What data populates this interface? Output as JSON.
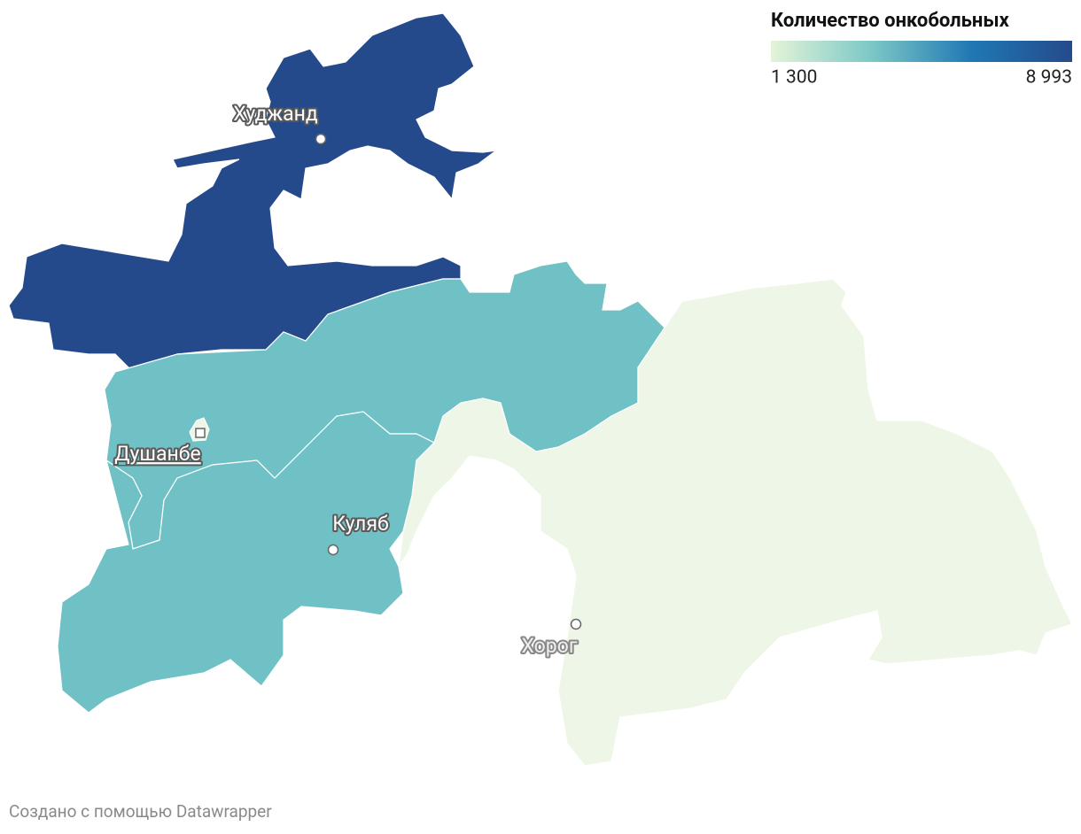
{
  "legend": {
    "title": "Количество онкобольных",
    "ticks": [
      {
        "value": 1300,
        "label": "1 300"
      },
      {
        "value": 8993,
        "label": "8 993"
      }
    ],
    "colors": [
      "#e4f4d8",
      "#7cc8c6",
      "#1f78b4",
      "#254a8b"
    ]
  },
  "cities": [
    {
      "label": "Худжанд",
      "capital": false
    },
    {
      "label": "Душанбе",
      "capital": true
    },
    {
      "label": "Куляб",
      "capital": false
    },
    {
      "label": "Хорог",
      "capital": false
    }
  ],
  "footer": "Создано с помощью Datawrapper"
}
